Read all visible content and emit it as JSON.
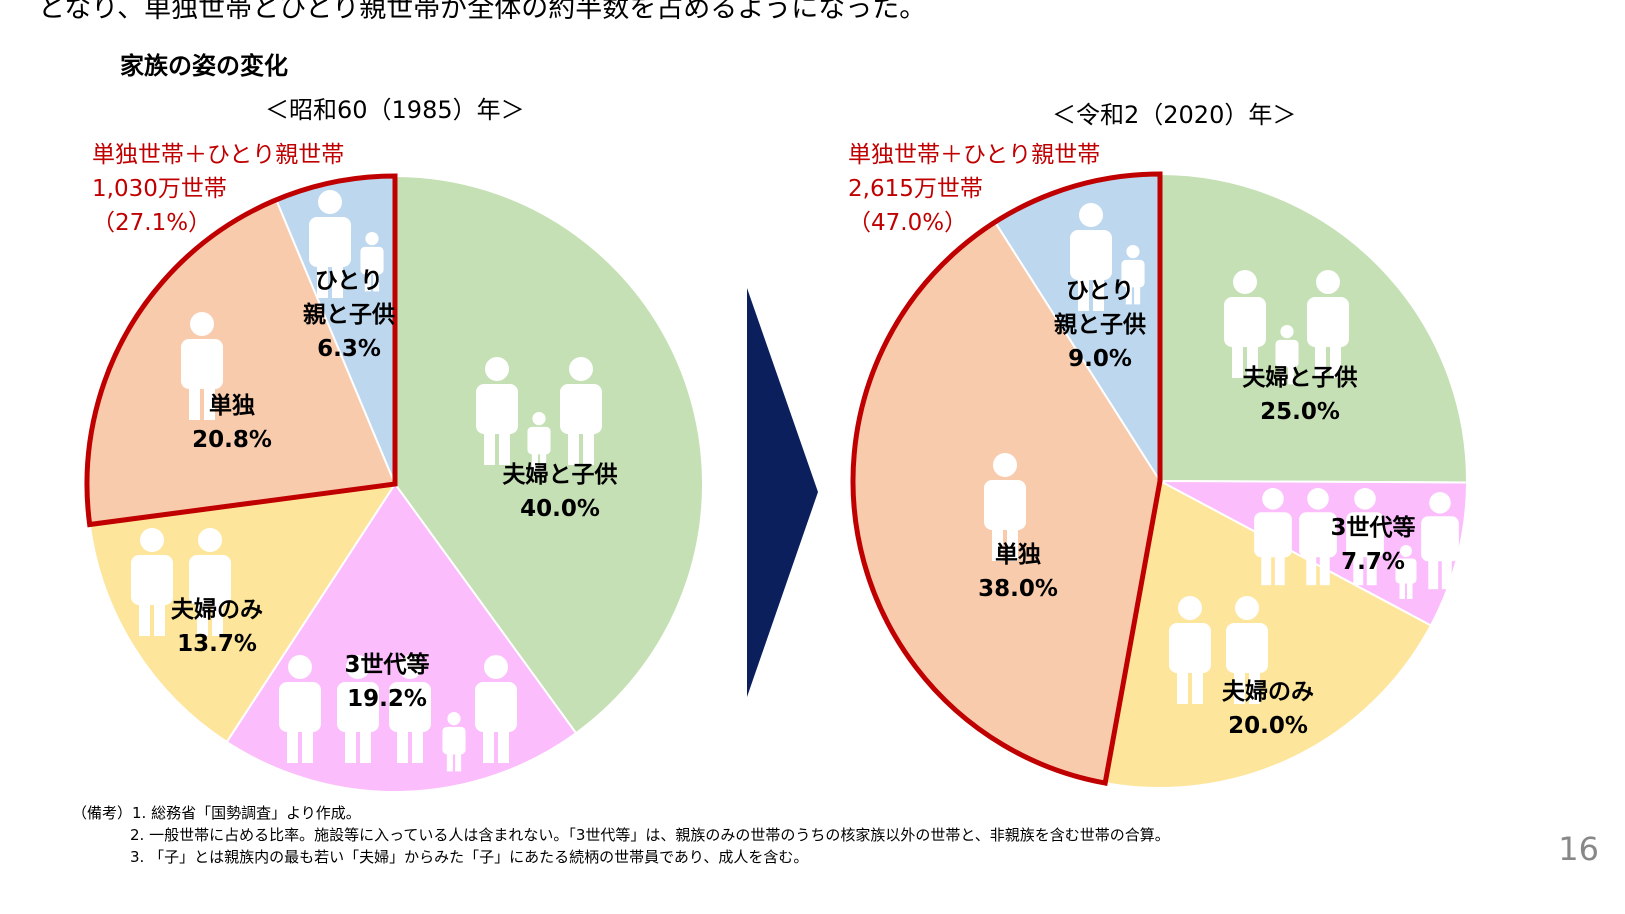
{
  "lead_text": "となり、単独世帯とひとり親世帯が全体の約半数を占めるようになった。",
  "figure_title": "家族の姿の変化",
  "colors": {
    "couple_children": "#c5e0b4",
    "three_gen": "#fbbdfb",
    "couple_only": "#fde59b",
    "single": "#f8cbad",
    "single_parent": "#bdd7ee",
    "highlight": "#c00000",
    "arrow": "#0b1f5c"
  },
  "chart_data": [
    {
      "type": "pie",
      "title": "＜昭和60（1985）年＞",
      "categories": [
        "夫婦と子供",
        "3世代等",
        "夫婦のみ",
        "単独",
        "ひとり親と子供"
      ],
      "labels": [
        "夫婦と子供",
        "3世代等",
        "夫婦のみ",
        "単独",
        "ひとり\n親と子供"
      ],
      "values": [
        40.0,
        19.2,
        13.7,
        20.8,
        6.3
      ],
      "value_labels": [
        "40.0%",
        "19.2%",
        "13.7%",
        "20.8%",
        "6.3%"
      ],
      "highlight": {
        "line1": "単独世帯＋ひとり親世帯",
        "line2": "1,030万世帯",
        "line3": "（27.1%）",
        "slices": [
          "単独",
          "ひとり親と子供"
        ]
      }
    },
    {
      "type": "pie",
      "title": "＜令和2（2020）年＞",
      "categories": [
        "夫婦と子供",
        "3世代等",
        "夫婦のみ",
        "単独",
        "ひとり親と子供"
      ],
      "labels": [
        "夫婦と子供",
        "3世代等",
        "夫婦のみ",
        "単独",
        "ひとり\n親と子供"
      ],
      "values": [
        25.0,
        7.7,
        20.0,
        38.0,
        9.0
      ],
      "value_labels": [
        "25.0%",
        "7.7%",
        "20.0%",
        "38.0%",
        "9.0%"
      ],
      "highlight": {
        "line1": "単独世帯＋ひとり親世帯",
        "line2": "2,615万世帯",
        "line3": "（47.0%）",
        "slices": [
          "単独",
          "ひとり親と子供"
        ]
      }
    }
  ],
  "notes": [
    "（備考）1. 総務省「国勢調査」より作成。",
    "2. 一般世帯に占める比率。施設等に入っている人は含まれない。「3世代等」は、親族のみの世帯のうちの核家族以外の世帯と、非親族を含む世帯の合算。",
    "3. 「子」とは親族内の最も若い「夫婦」からみた「子」にあたる続柄の世帯員であり、成人を含む。"
  ],
  "page_number": "16"
}
